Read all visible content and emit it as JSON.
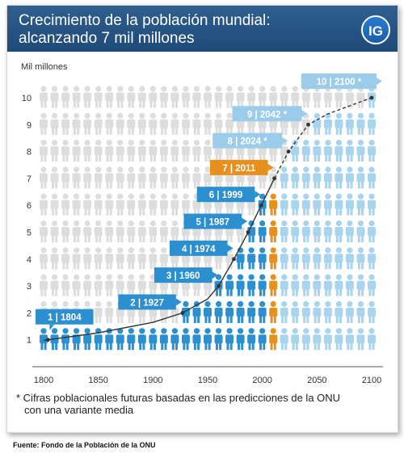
{
  "header": {
    "title_line1": "Crecimiento de la población mundial:",
    "title_line2": "alcanzando 7 mil millones",
    "logo": "IG"
  },
  "colors": {
    "header_bg": "#1e4a78",
    "person_past": "#2c8fd0",
    "person_future": "#a8d4ee",
    "person_current": "#e8901e",
    "person_empty": "#dddddd",
    "label_past": "#2c8fd0",
    "label_current": "#e8901e",
    "label_future": "#9bcce9",
    "curve": "#333333"
  },
  "chart_data": {
    "type": "area",
    "title": "Crecimiento de la población mundial: alcanzando 7 mil millones",
    "ylabel": "Mil millones",
    "xlabel": "",
    "xlim": [
      1800,
      2100
    ],
    "ylim": [
      0,
      10
    ],
    "x_ticks": [
      1800,
      1850,
      1900,
      1950,
      2000,
      2050,
      2100
    ],
    "y_ticks": [
      1,
      2,
      3,
      4,
      5,
      6,
      7,
      8,
      9,
      10
    ],
    "milestones": [
      {
        "billion": 1,
        "year": 1804,
        "label": "1 | 1804",
        "kind": "past"
      },
      {
        "billion": 2,
        "year": 1927,
        "label": "2 | 1927",
        "kind": "past"
      },
      {
        "billion": 3,
        "year": 1960,
        "label": "3 | 1960",
        "kind": "past"
      },
      {
        "billion": 4,
        "year": 1974,
        "label": "4 | 1974",
        "kind": "past"
      },
      {
        "billion": 5,
        "year": 1987,
        "label": "5 | 1987",
        "kind": "past"
      },
      {
        "billion": 6,
        "year": 1999,
        "label": "6 | 1999",
        "kind": "past"
      },
      {
        "billion": 7,
        "year": 2011,
        "label": "7 | 2011",
        "kind": "current"
      },
      {
        "billion": 8,
        "year": 2024,
        "label": "8 | 2024 *",
        "kind": "future"
      },
      {
        "billion": 9,
        "year": 2042,
        "label": "9 | 2042 *",
        "kind": "future"
      },
      {
        "billion": 10,
        "year": 2100,
        "label": "10 | 2100 *",
        "kind": "future"
      }
    ],
    "curve_actual": [
      [
        1800,
        0.98
      ],
      [
        1804,
        1.0
      ],
      [
        1850,
        1.26
      ],
      [
        1900,
        1.65
      ],
      [
        1927,
        2.0
      ],
      [
        1950,
        2.52
      ],
      [
        1960,
        3.0
      ],
      [
        1974,
        4.0
      ],
      [
        1987,
        5.0
      ],
      [
        1999,
        6.0
      ],
      [
        2011,
        7.0
      ]
    ],
    "curve_projected": [
      [
        2011,
        7.0
      ],
      [
        2024,
        8.0
      ],
      [
        2042,
        9.0
      ],
      [
        2060,
        9.4
      ],
      [
        2080,
        9.7
      ],
      [
        2100,
        10.0
      ]
    ],
    "grid": false,
    "legend": "none"
  },
  "footnote_line1": "* Cifras poblacionales futuras basadas en las predicciones de la ONU",
  "footnote_line2": "con una variante media",
  "source": "Fuente: Fondo de la Población de la ONU"
}
